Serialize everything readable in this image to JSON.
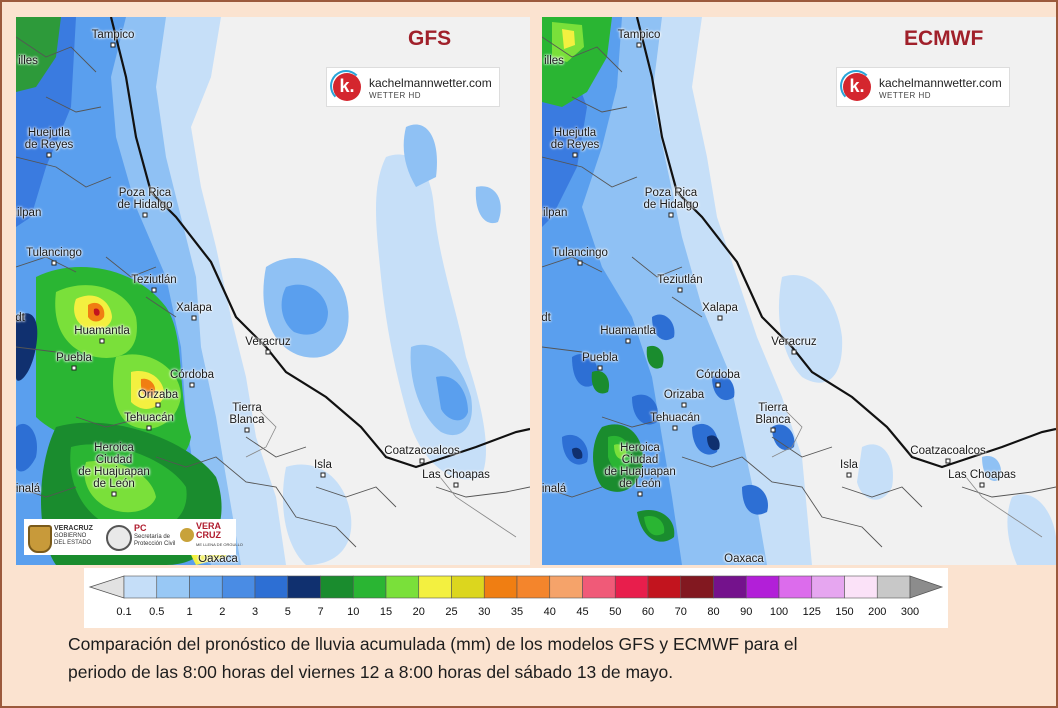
{
  "maps": [
    {
      "id": "gfs",
      "title": "GFS",
      "cities": [
        {
          "name": "Tampico"
        },
        {
          "name": "Huejutla\nde Reyes"
        },
        {
          "name": "Poza Rica\nde Hidalgo"
        },
        {
          "name": "uilpan"
        },
        {
          "name": "Tulancingo"
        },
        {
          "name": "Teziutlán"
        },
        {
          "name": "Xalapa"
        },
        {
          "name": "dt"
        },
        {
          "name": "Huamantla"
        },
        {
          "name": "Veracruz"
        },
        {
          "name": "Puebla"
        },
        {
          "name": "Córdoba"
        },
        {
          "name": "Orizaba"
        },
        {
          "name": "Tehuacán"
        },
        {
          "name": "Tierra\nBlanca"
        },
        {
          "name": "Heroica\nCiudad\nde Huajuapan\nde León"
        },
        {
          "name": "Coatzacoalcos"
        },
        {
          "name": "Isla"
        },
        {
          "name": "Las Choapas"
        },
        {
          "name": "inalá"
        },
        {
          "name": "Oaxaca"
        },
        {
          "name": "illes"
        }
      ]
    },
    {
      "id": "ecmwf",
      "title": "ECMWF",
      "cities": [
        {
          "name": "Tampico"
        },
        {
          "name": "Huejutla\nde Reyes"
        },
        {
          "name": "Poza Rica\nde Hidalgo"
        },
        {
          "name": "uilpan"
        },
        {
          "name": "Tulancingo"
        },
        {
          "name": "Teziutlán"
        },
        {
          "name": "Xalapa"
        },
        {
          "name": "dt"
        },
        {
          "name": "Huamantla"
        },
        {
          "name": "Veracruz"
        },
        {
          "name": "Puebla"
        },
        {
          "name": "Córdoba"
        },
        {
          "name": "Orizaba"
        },
        {
          "name": "Tehuacán"
        },
        {
          "name": "Tierra\nBlanca"
        },
        {
          "name": "Heroica\nCiudad\nde Huajuapan\nde León"
        },
        {
          "name": "Coatzacoalcos"
        },
        {
          "name": "Isla"
        },
        {
          "name": "Las Choapas"
        },
        {
          "name": "inalá"
        },
        {
          "name": "Oaxaca"
        },
        {
          "name": "illes"
        }
      ]
    }
  ],
  "watermark": {
    "name": "kachelmannwetter.com",
    "sub": "WETTER HD",
    "logo_letter": "k."
  },
  "gov_logos": {
    "veracruz": {
      "line1": "VERACRUZ",
      "line2": "GOBIERNO",
      "line3": "DEL ESTADO"
    },
    "pc": {
      "line1": "PC",
      "line2": "Secretaría de",
      "line3": "Protección Civil"
    },
    "vera": {
      "line1": "VERA",
      "line2": "CRUZ",
      "line3": "ME LLENA DE ORGULLO"
    }
  },
  "legend": {
    "ticks": [
      "0.1",
      "0.5",
      "1",
      "2",
      "3",
      "5",
      "7",
      "10",
      "15",
      "20",
      "25",
      "30",
      "35",
      "40",
      "45",
      "50",
      "60",
      "70",
      "80",
      "90",
      "100",
      "125",
      "150",
      "200",
      "300"
    ],
    "colors": [
      "#c5def8",
      "#98c8f5",
      "#6baaf0",
      "#4a8ce4",
      "#2d6fd4",
      "#10306f",
      "#1a8c2e",
      "#2ab533",
      "#7ae03a",
      "#f3f040",
      "#dcd61e",
      "#f07e12",
      "#f4852c",
      "#f5a36a",
      "#f05a78",
      "#e81e4c",
      "#c2141e",
      "#821820",
      "#74128c",
      "#b21fd8",
      "#dc6cec",
      "#e6a6f0",
      "#fbe2f8",
      "#c8c8c8"
    ],
    "start_color": "#e2e2e2",
    "end_color": "#8c8c8c"
  },
  "caption": {
    "line1": "Comparación del pronóstico de lluvia acumulada (mm) de los modelos GFS y ECMWF para el",
    "line2": "periodo de las 8:00 horas del  viernes 12 a 8:00 horas del sábado 13 de mayo."
  }
}
